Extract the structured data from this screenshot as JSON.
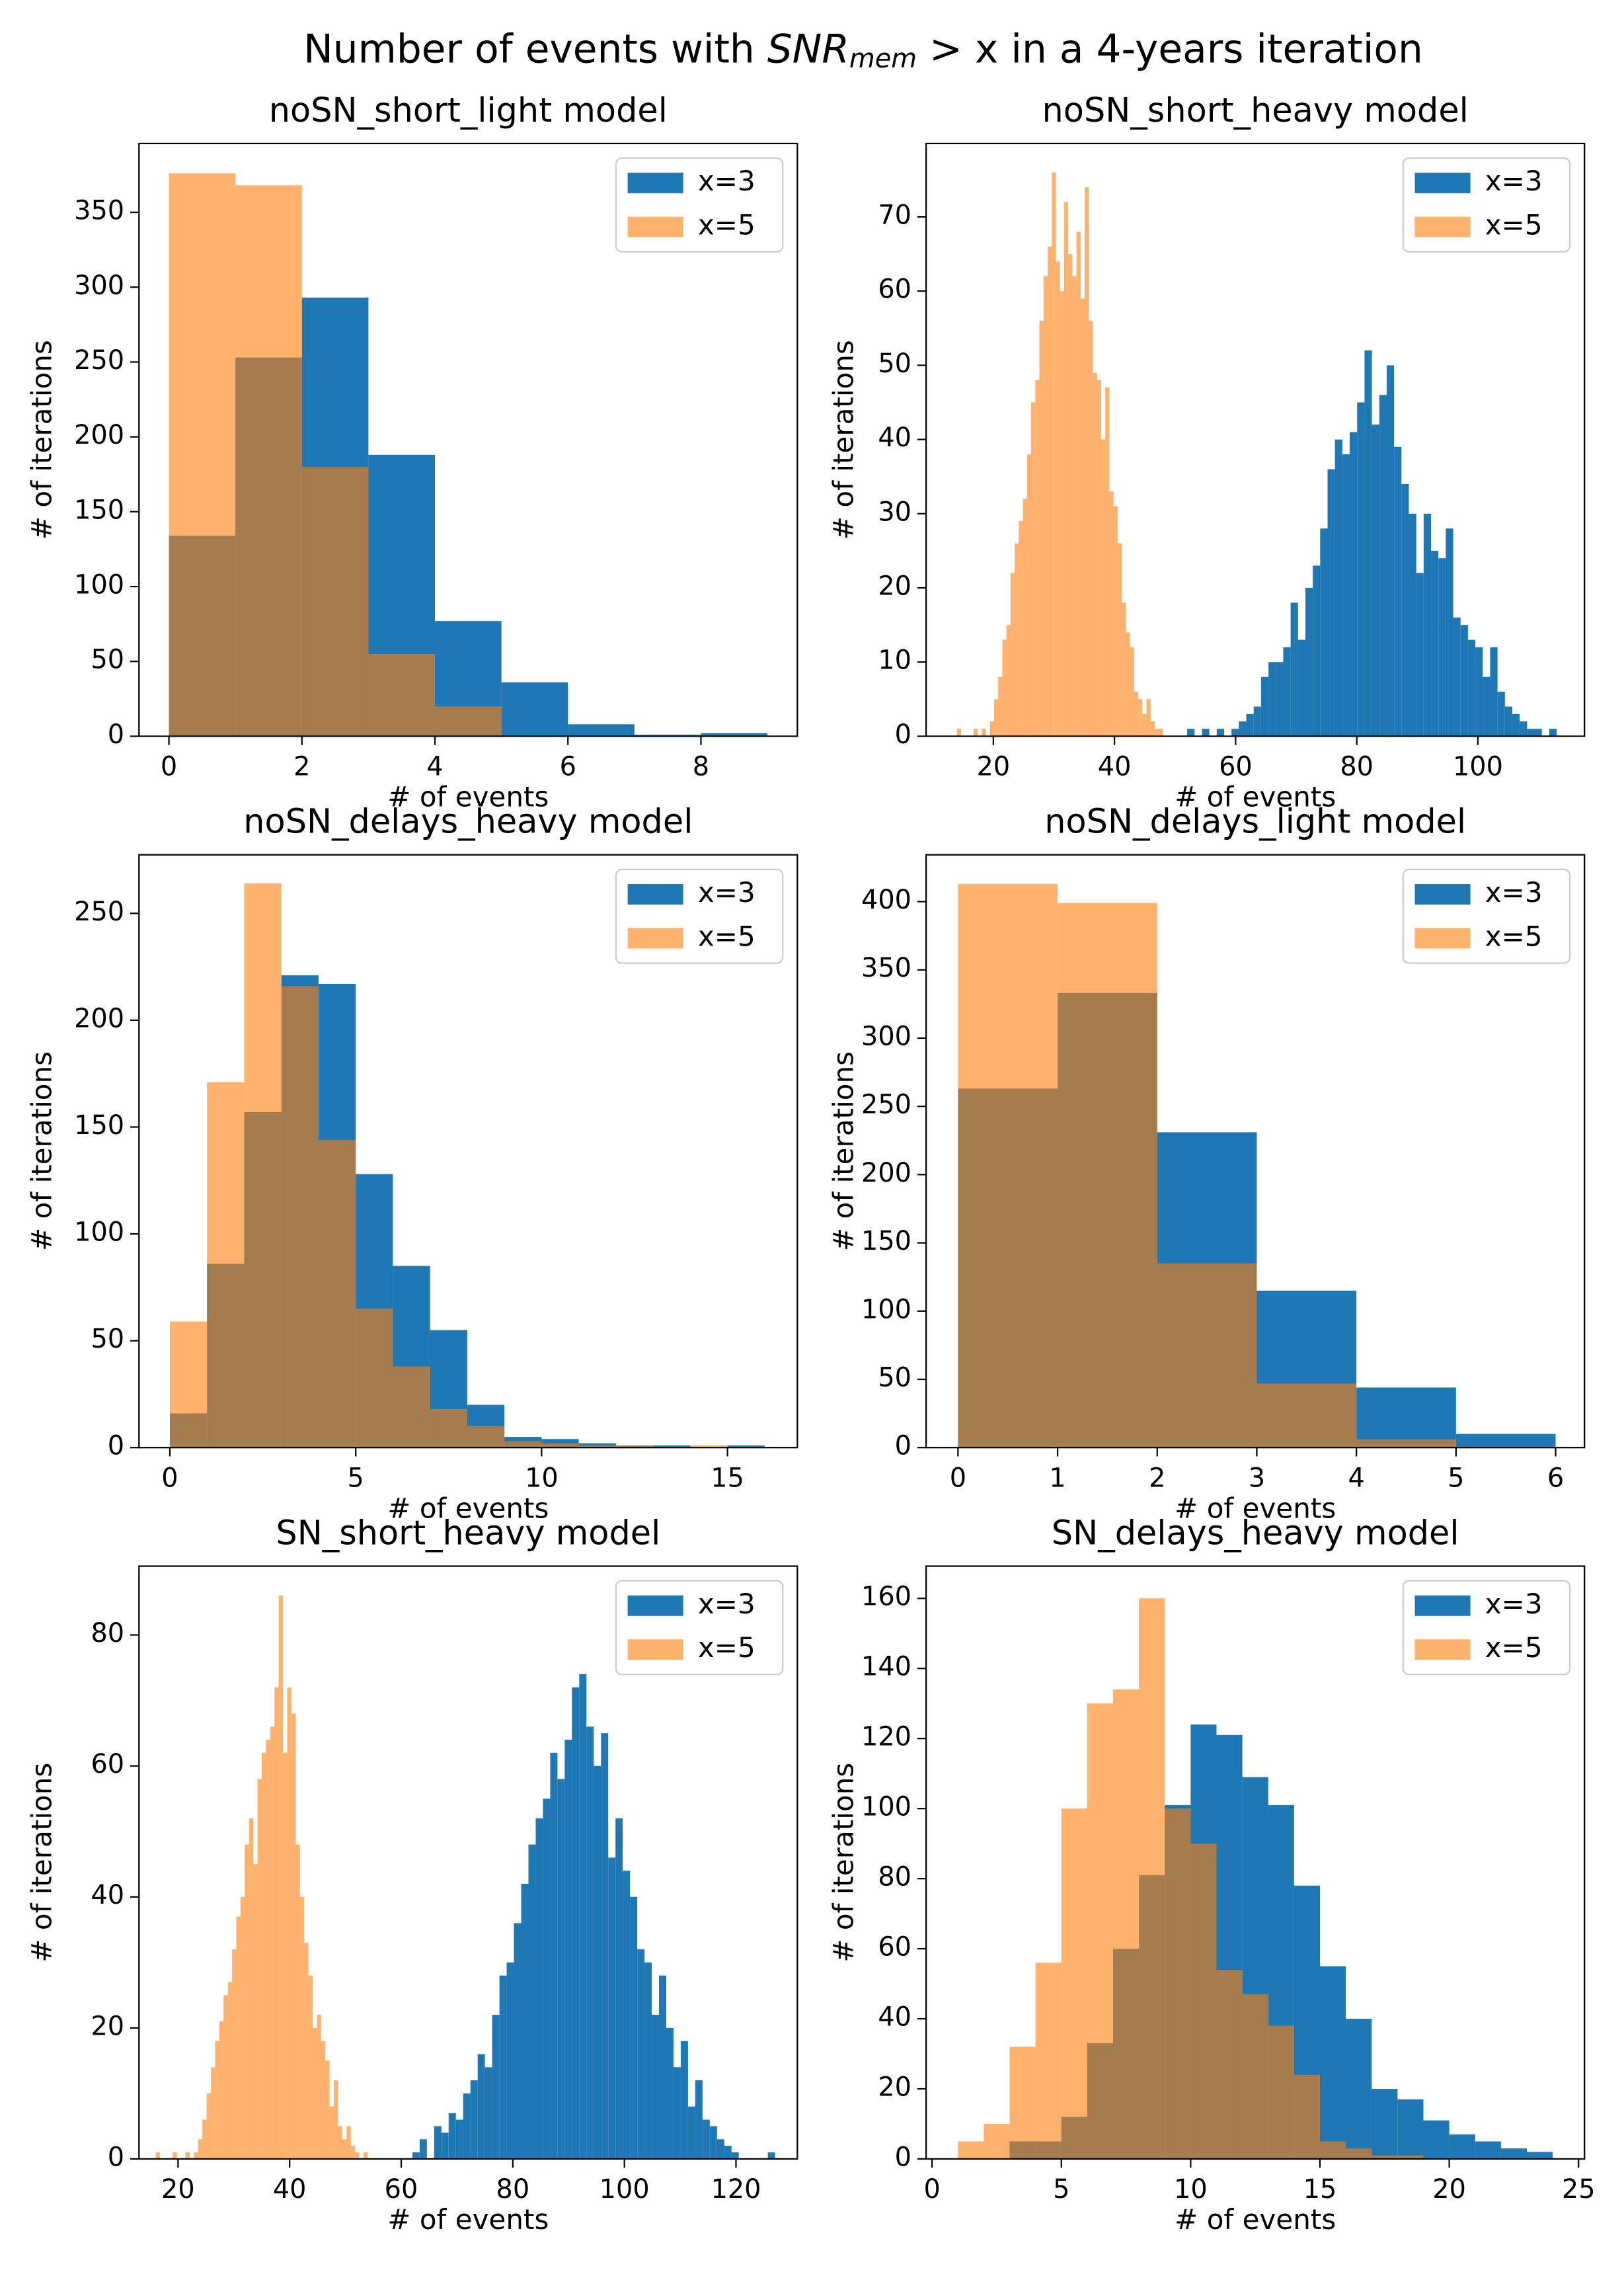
{
  "title": {
    "before": "Number of events with ",
    "symbol": "SNR",
    "subscript": "mem",
    "after": " > x in a 4-years iteration"
  },
  "chart_data": [
    {
      "type": "histogram",
      "title": "noSN_short_light model",
      "xlabel": "# of events",
      "ylabel": "# of iterations",
      "legend": "upper right",
      "xlim": [
        -0.45,
        9.45
      ],
      "ylim": [
        0,
        396
      ],
      "xticks": [
        0,
        2,
        4,
        6,
        8
      ],
      "yticks": [
        0,
        50,
        100,
        150,
        200,
        250,
        300,
        350
      ],
      "series": [
        {
          "name": "x=3",
          "color": "#1f77b4",
          "alpha": 1,
          "bins": [
            0,
            1,
            2,
            3,
            4,
            5,
            6,
            7,
            8,
            9
          ],
          "values": [
            134,
            253,
            293,
            188,
            77,
            36,
            8,
            1,
            2
          ]
        },
        {
          "name": "x=5",
          "color": "#ff7f0e",
          "alpha": 0.6,
          "bins": [
            0,
            1,
            2,
            3,
            4,
            5
          ],
          "values": [
            376,
            368,
            180,
            55,
            20
          ]
        }
      ]
    },
    {
      "type": "histogram",
      "title": "noSN_short_heavy model",
      "xlabel": "# of events",
      "ylabel": "# of iterations",
      "legend": "upper right",
      "xlim": [
        8.9,
        117.6
      ],
      "ylim": [
        0,
        79.9
      ],
      "xticks": [
        20,
        40,
        60,
        80,
        100
      ],
      "yticks": [
        0,
        10,
        20,
        30,
        40,
        50,
        60,
        70
      ],
      "series": [
        {
          "name": "x=3",
          "color": "#1f77b4",
          "alpha": 1,
          "bins": [
            52,
            53.22,
            54.44,
            55.66,
            56.88,
            58.1,
            59.32,
            60.54,
            61.76,
            62.98,
            64.2,
            65.42,
            66.64,
            67.86,
            69.08,
            70.3,
            71.52,
            72.74,
            73.96,
            75.18,
            76.4,
            77.62,
            78.84,
            80.06,
            81.28,
            82.5,
            83.72,
            84.94,
            86.16,
            87.38,
            88.6,
            89.82,
            91.04,
            92.26,
            93.48,
            94.7,
            95.92,
            97.14,
            98.36,
            99.58,
            100.8,
            102.02,
            103.24,
            104.46,
            105.68,
            106.9,
            108.12,
            109.34,
            110.56,
            111.78,
            113
          ],
          "values": [
            1,
            0,
            1,
            0,
            1,
            0,
            1,
            2,
            3,
            4,
            8,
            10,
            10,
            12,
            18,
            13,
            20,
            23,
            28,
            36,
            40,
            38,
            41,
            45,
            52,
            42,
            46,
            50,
            39,
            34,
            30,
            22,
            30,
            25,
            24,
            28,
            16,
            15,
            13,
            12,
            8,
            12,
            6,
            4,
            3,
            2,
            1,
            1,
            0,
            1
          ]
        },
        {
          "name": "x=5",
          "color": "#ff7f0e",
          "alpha": 0.6,
          "bins": [
            14,
            14.68,
            15.36,
            16.04,
            16.72,
            17.4,
            18.08,
            18.76,
            19.44,
            20.12,
            20.8,
            21.48,
            22.16,
            22.84,
            23.52,
            24.2,
            24.88,
            25.56,
            26.24,
            26.92,
            27.6,
            28.28,
            28.96,
            29.64,
            30.32,
            31,
            31.68,
            32.36,
            33.04,
            33.72,
            34.4,
            35.08,
            35.76,
            36.44,
            37.12,
            37.8,
            38.48,
            39.16,
            39.84,
            40.52,
            41.2,
            41.88,
            42.56,
            43.24,
            43.92,
            44.6,
            45.28,
            45.96,
            46.64,
            47.32,
            48
          ],
          "values": [
            1,
            0,
            0,
            0,
            1,
            0,
            1,
            0,
            2,
            5,
            8,
            13,
            15,
            22,
            26,
            29,
            32,
            38,
            45,
            48,
            56,
            62,
            66,
            76,
            64,
            60,
            72,
            65,
            62,
            68,
            59,
            74,
            56,
            49,
            48,
            40,
            47,
            33,
            31,
            26,
            18,
            14,
            12,
            6,
            5,
            3,
            5,
            2,
            1,
            1
          ]
        }
      ]
    },
    {
      "type": "histogram",
      "title": "noSN_delays_heavy model",
      "xlabel": "# of events",
      "ylabel": "# of iterations",
      "legend": "upper right",
      "xlim": [
        -0.83,
        16.88
      ],
      "ylim": [
        0,
        277.4
      ],
      "xticks": [
        0,
        5,
        10,
        15
      ],
      "yticks": [
        0,
        50,
        100,
        150,
        200,
        250
      ],
      "series": [
        {
          "name": "x=3",
          "color": "#1f77b4",
          "alpha": 1,
          "bins": [
            0,
            1,
            2,
            3,
            4,
            5,
            6,
            7,
            8,
            9,
            10,
            11,
            12,
            13,
            14,
            15,
            16
          ],
          "values": [
            16,
            86,
            157,
            221,
            217,
            128,
            85,
            55,
            20,
            5,
            4,
            2,
            1,
            1,
            0,
            1
          ]
        },
        {
          "name": "x=5",
          "color": "#ff7f0e",
          "alpha": 0.6,
          "bins": [
            0,
            1,
            2,
            3,
            4,
            5,
            6,
            7,
            8,
            9,
            10,
            11,
            12,
            13,
            14,
            15
          ],
          "values": [
            59,
            171,
            264,
            216,
            144,
            65,
            38,
            18,
            10,
            3,
            2,
            1,
            1,
            0,
            1
          ]
        }
      ]
    },
    {
      "type": "histogram",
      "title": "noSN_delays_light model",
      "xlabel": "# of events",
      "ylabel": "# of iterations",
      "legend": "upper right",
      "xlim": [
        -0.32,
        6.29
      ],
      "ylim": [
        0,
        434.3
      ],
      "xticks": [
        0,
        1,
        2,
        3,
        4,
        5,
        6
      ],
      "yticks": [
        0,
        50,
        100,
        150,
        200,
        250,
        300,
        350,
        400
      ],
      "series": [
        {
          "name": "x=3",
          "color": "#1f77b4",
          "alpha": 1,
          "bins": [
            0,
            1,
            2,
            3,
            4,
            5,
            6
          ],
          "values": [
            263,
            333,
            231,
            115,
            44,
            10
          ]
        },
        {
          "name": "x=5",
          "color": "#ff7f0e",
          "alpha": 0.6,
          "bins": [
            0,
            1,
            2,
            3,
            4,
            5
          ],
          "values": [
            413,
            399,
            135,
            47,
            6
          ]
        }
      ]
    },
    {
      "type": "histogram",
      "title": "SN_short_heavy model",
      "xlabel": "# of events",
      "ylabel": "# of iterations",
      "legend": "upper right",
      "xlim": [
        13,
        131
      ],
      "ylim": [
        0,
        90.5
      ],
      "xticks": [
        20,
        40,
        60,
        80,
        100,
        120
      ],
      "yticks": [
        0,
        20,
        40,
        60,
        80
      ],
      "series": [
        {
          "name": "x=3",
          "color": "#1f77b4",
          "alpha": 1,
          "bins": [
            62,
            63.3,
            64.6,
            65.9,
            67.2,
            68.5,
            69.8,
            71.1,
            72.4,
            73.7,
            75,
            76.3,
            77.6,
            78.9,
            80.2,
            81.5,
            82.8,
            84.1,
            85.4,
            86.7,
            88,
            89.3,
            90.6,
            91.9,
            93.2,
            94.5,
            95.8,
            97.1,
            98.4,
            99.7,
            101,
            102.3,
            103.6,
            104.9,
            106.2,
            107.5,
            108.8,
            110.1,
            111.4,
            112.7,
            114,
            115.3,
            116.6,
            117.9,
            119.2,
            120.5,
            121.8,
            123.1,
            124.4,
            125.7,
            127
          ],
          "values": [
            1,
            3,
            0,
            5,
            4,
            7,
            6,
            10,
            12,
            16,
            14,
            22,
            28,
            30,
            36,
            42,
            48,
            52,
            55,
            62,
            58,
            64,
            72,
            74,
            66,
            60,
            65,
            46,
            52,
            44,
            40,
            32,
            30,
            22,
            28,
            20,
            14,
            18,
            8,
            12,
            6,
            5,
            3,
            2,
            1,
            0,
            0,
            0,
            0,
            1
          ]
        },
        {
          "name": "x=5",
          "color": "#ff7f0e",
          "alpha": 0.6,
          "bins": [
            16,
            16.76,
            17.52,
            18.28,
            19.04,
            19.8,
            20.56,
            21.32,
            22.08,
            22.84,
            23.6,
            24.36,
            25.12,
            25.88,
            26.64,
            27.4,
            28.16,
            28.92,
            29.68,
            30.44,
            31.2,
            31.96,
            32.72,
            33.48,
            34.24,
            35,
            35.76,
            36.52,
            37.28,
            38.04,
            38.8,
            39.56,
            40.32,
            41.08,
            41.84,
            42.6,
            43.36,
            44.12,
            44.88,
            45.64,
            46.4,
            47.16,
            47.92,
            48.68,
            49.44,
            50.2,
            50.96,
            51.72,
            52.48,
            53.24,
            54
          ],
          "values": [
            1,
            0,
            0,
            0,
            1,
            0,
            0,
            1,
            0,
            1,
            3,
            6,
            10,
            14,
            18,
            21,
            25,
            27,
            32,
            37,
            40,
            48,
            52,
            45,
            58,
            62,
            64,
            66,
            72,
            86,
            62,
            72,
            68,
            48,
            40,
            33,
            28,
            20,
            22,
            18,
            15,
            8,
            12,
            5,
            3,
            5,
            2,
            1,
            0,
            1
          ]
        }
      ]
    },
    {
      "type": "histogram",
      "title": "SN_delays_heavy model",
      "xlabel": "# of events",
      "ylabel": "# of iterations",
      "legend": "upper right",
      "xlim": [
        -0.23,
        25.23
      ],
      "ylim": [
        0,
        169.2
      ],
      "xticks": [
        0,
        5,
        10,
        15,
        20,
        25
      ],
      "yticks": [
        0,
        20,
        40,
        60,
        80,
        100,
        120,
        140,
        160
      ],
      "series": [
        {
          "name": "x=3",
          "color": "#1f77b4",
          "alpha": 1,
          "bins": [
            3,
            4,
            5,
            6,
            7,
            8,
            9,
            10,
            11,
            12,
            13,
            14,
            15,
            16,
            17,
            18,
            19,
            20,
            21,
            22,
            23,
            24
          ],
          "values": [
            5,
            5,
            12,
            33,
            60,
            81,
            101,
            124,
            121,
            109,
            101,
            78,
            55,
            40,
            20,
            17,
            11,
            7,
            5,
            3,
            2
          ]
        },
        {
          "name": "x=5",
          "color": "#ff7f0e",
          "alpha": 0.6,
          "bins": [
            1,
            2,
            3,
            4,
            5,
            6,
            7,
            8,
            9,
            10,
            11,
            12,
            13,
            14,
            15,
            16,
            17,
            18,
            19
          ],
          "values": [
            5,
            10,
            32,
            56,
            100,
            130,
            134,
            160,
            100,
            90,
            54,
            47,
            38,
            24,
            5,
            3,
            1,
            1
          ]
        }
      ]
    }
  ]
}
